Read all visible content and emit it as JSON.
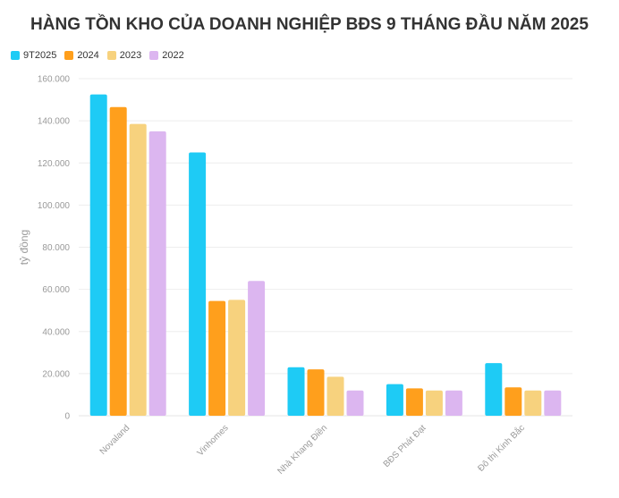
{
  "chart_data": {
    "type": "bar",
    "title": "HÀNG TỒN KHO CỦA DOANH NGHIỆP BĐS 9 THÁNG ĐẦU NĂM 2025",
    "ylabel": "tỷ đồng",
    "xlabel": "",
    "categories": [
      "Novaland",
      "Vinhomes",
      "Nhà Khang Điền",
      "BĐS Phát Đạt",
      "Đô thị Kinh Bắc"
    ],
    "series": [
      {
        "name": "9T2025",
        "color": "#1ecbf5",
        "values": [
          152500,
          125000,
          23000,
          15000,
          25000
        ]
      },
      {
        "name": "2024",
        "color": "#ff9f1c",
        "values": [
          146500,
          54500,
          22000,
          13000,
          13500
        ]
      },
      {
        "name": "2023",
        "color": "#f7d27e",
        "values": [
          138500,
          55000,
          18500,
          12000,
          12000
        ]
      },
      {
        "name": "2022",
        "color": "#dcb6f0",
        "values": [
          135000,
          64000,
          12000,
          12000,
          12000
        ]
      }
    ],
    "ylim": [
      0,
      160000
    ],
    "yticks": [
      0,
      20000,
      40000,
      60000,
      80000,
      100000,
      120000,
      140000,
      160000
    ],
    "ytick_labels": [
      "0",
      "20.000",
      "40.000",
      "60.000",
      "80.000",
      "100.000",
      "120.000",
      "140.000",
      "160.000"
    ],
    "grid": true,
    "legend_position": "top-left"
  }
}
